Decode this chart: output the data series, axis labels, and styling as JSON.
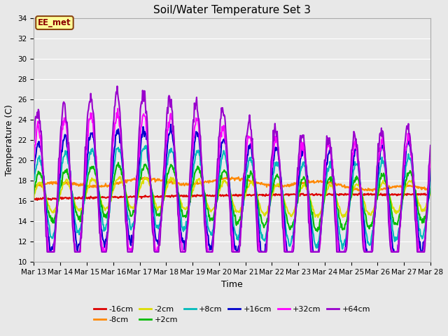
{
  "title": "Soil/Water Temperature Set 3",
  "xlabel": "Time",
  "ylabel": "Temperature (C)",
  "ylim": [
    10,
    34
  ],
  "yticks": [
    10,
    12,
    14,
    16,
    18,
    20,
    22,
    24,
    26,
    28,
    30,
    32,
    34
  ],
  "annotation_text": "EE_met",
  "annotation_bg": "#ffff99",
  "annotation_border": "#8B4513",
  "series_order": [
    "-16cm",
    "-8cm",
    "-2cm",
    "+2cm",
    "+8cm",
    "+16cm",
    "+32cm",
    "+64cm"
  ],
  "series": {
    "-16cm": {
      "color": "#dd0000",
      "lw": 1.5
    },
    "-8cm": {
      "color": "#ff8800",
      "lw": 1.5
    },
    "-2cm": {
      "color": "#dddd00",
      "lw": 1.5
    },
    "+2cm": {
      "color": "#00bb00",
      "lw": 1.5
    },
    "+8cm": {
      "color": "#00bbbb",
      "lw": 1.5
    },
    "+16cm": {
      "color": "#0000cc",
      "lw": 1.5
    },
    "+32cm": {
      "color": "#ff00ff",
      "lw": 1.5
    },
    "+64cm": {
      "color": "#9900cc",
      "lw": 1.5
    }
  },
  "bg_color": "#e8e8e8",
  "plot_bg": "#e8e8e8",
  "grid_color": "#ffffff",
  "n_points": 720,
  "legend_row1": [
    "-16cm",
    "-8cm",
    "-2cm",
    "+2cm",
    "+8cm",
    "+16cm"
  ],
  "legend_row2": [
    "+32cm",
    "+64cm"
  ]
}
